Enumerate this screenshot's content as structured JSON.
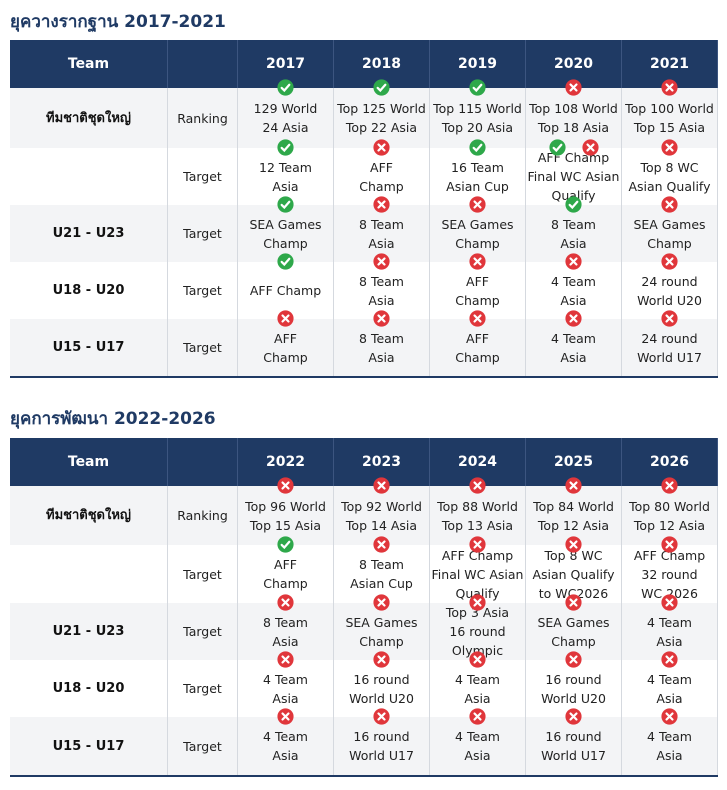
{
  "sections": [
    {
      "title": "ยุควางรากฐาน 2017-2021",
      "table": {
        "header": {
          "team": "Team",
          "years": [
            "2017",
            "2018",
            "2019",
            "2020",
            "2021"
          ]
        },
        "rows": [
          {
            "team": "ทีมชาติชุดใหญ่",
            "type": "Ranking",
            "cells": [
              [
                "129 World",
                "24 Asia"
              ],
              [
                "Top 125 World",
                "Top 22 Asia"
              ],
              [
                "Top 115 World",
                "Top 20 Asia"
              ],
              [
                "Top 108 World",
                "Top 18 Asia"
              ],
              [
                "Top 100 World",
                "Top 15 Asia"
              ]
            ]
          },
          {
            "type": "Target",
            "cells": [
              [
                "12 Team",
                "Asia"
              ],
              [
                "AFF",
                "Champ"
              ],
              [
                "16 Team",
                "Asian Cup"
              ],
              [
                "AFF Champ",
                "Final WC Asian",
                "Qualify"
              ],
              [
                "Top 8 WC",
                "Asian Qualify"
              ]
            ]
          },
          {
            "team": "U21 - U23",
            "type": "Target",
            "cells": [
              [
                "SEA Games",
                "Champ"
              ],
              [
                "8 Team",
                "Asia"
              ],
              [
                "SEA Games",
                "Champ"
              ],
              [
                "8 Team",
                "Asia"
              ],
              [
                "SEA Games",
                "Champ"
              ]
            ]
          },
          {
            "team": "U18 - U20",
            "type": "Target",
            "cells": [
              [
                "AFF Champ"
              ],
              [
                "8 Team",
                "Asia"
              ],
              [
                "AFF",
                "Champ"
              ],
              [
                "4 Team",
                "Asia"
              ],
              [
                "24 round",
                "World U20"
              ]
            ]
          },
          {
            "team": "U15 - U17",
            "type": "Target",
            "cells": [
              [
                "AFF",
                "Champ"
              ],
              [
                "8 Team",
                "Asia"
              ],
              [
                "AFF",
                "Champ"
              ],
              [
                "4 Team",
                "Asia"
              ],
              [
                "24 round",
                "World U17"
              ]
            ]
          }
        ]
      }
    },
    {
      "title": "ยุคการพัฒนา 2022-2026",
      "table": {
        "header": {
          "team": "Team",
          "years": [
            "2022",
            "2023",
            "2024",
            "2025",
            "2026"
          ]
        },
        "rows": [
          {
            "team": "ทีมชาติชุดใหญ่",
            "type": "Ranking",
            "cells": [
              [
                "Top 96 World",
                "Top 15 Asia"
              ],
              [
                "Top 92 World",
                "Top 14 Asia"
              ],
              [
                "Top 88 World",
                "Top 13 Asia"
              ],
              [
                "Top 84 World",
                "Top 12 Asia"
              ],
              [
                "Top 80 World",
                "Top 12 Asia"
              ]
            ]
          },
          {
            "type": "Target",
            "cells": [
              [
                "AFF",
                "Champ"
              ],
              [
                "8 Team",
                "Asian Cup"
              ],
              [
                "AFF Champ",
                "Final WC Asian",
                "Qualify"
              ],
              [
                "Top 8 WC",
                "Asian Qualify",
                "to WC2026"
              ],
              [
                "AFF Champ",
                "32 round",
                "WC 2026"
              ]
            ]
          },
          {
            "team": "U21 - U23",
            "type": "Target",
            "cells": [
              [
                "8 Team",
                "Asia"
              ],
              [
                "SEA Games",
                "Champ"
              ],
              [
                "Top 3 Asia",
                "16 round",
                "Olympic"
              ],
              [
                "SEA Games",
                "Champ"
              ],
              [
                "4 Team",
                "Asia"
              ]
            ]
          },
          {
            "team": "U18 - U20",
            "type": "Target",
            "cells": [
              [
                "4 Team",
                "Asia"
              ],
              [
                "16 round",
                "World U20"
              ],
              [
                "4 Team",
                "Asia"
              ],
              [
                "16 round",
                "World U20"
              ],
              [
                "4 Team",
                "Asia"
              ]
            ]
          },
          {
            "team": "U15 - U17",
            "type": "Target",
            "cells": [
              [
                "4 Team",
                "Asia"
              ],
              [
                "16 round",
                "World U17"
              ],
              [
                "4 Team",
                "Asia"
              ],
              [
                "16 round",
                "World U17"
              ],
              [
                "4 Team",
                "Asia"
              ]
            ]
          }
        ]
      }
    }
  ]
}
